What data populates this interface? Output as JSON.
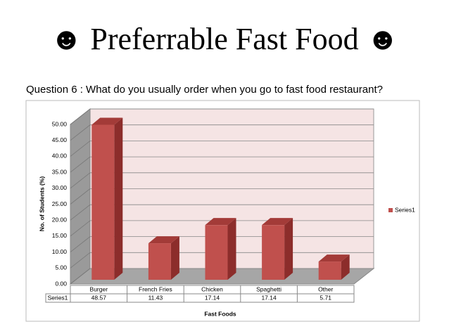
{
  "chart_data": {
    "type": "bar3d",
    "title": "☻ Preferrable Fast Food ☻",
    "subtitle": "Question 6 : What do you usually order when you go to fast food restaurant?",
    "y_label": "No. of Students (%)",
    "x_label": "Fast Foods",
    "categories": [
      "Burger",
      "French Fries",
      "Chicken",
      "Spaghetti",
      "Other"
    ],
    "series": [
      {
        "name": "Series1",
        "color": "#c0504d",
        "values": [
          48.57,
          11.43,
          17.14,
          17.14,
          5.71
        ]
      }
    ],
    "ylim": [
      0,
      50
    ],
    "yticks": [
      {
        "value": 0,
        "label": "0.00"
      },
      {
        "value": 5,
        "label": "5.00"
      },
      {
        "value": 10,
        "label": "10.00"
      },
      {
        "value": 15,
        "label": "15.00"
      },
      {
        "value": 20,
        "label": "20.00"
      },
      {
        "value": 25,
        "label": "25.00"
      },
      {
        "value": 30,
        "label": "30.00"
      },
      {
        "value": 35,
        "label": "35.00"
      },
      {
        "value": 40,
        "label": "40.00"
      },
      {
        "value": 45,
        "label": "45.00"
      },
      {
        "value": 50,
        "label": "50.00"
      }
    ],
    "grid": true,
    "legend": "right"
  }
}
